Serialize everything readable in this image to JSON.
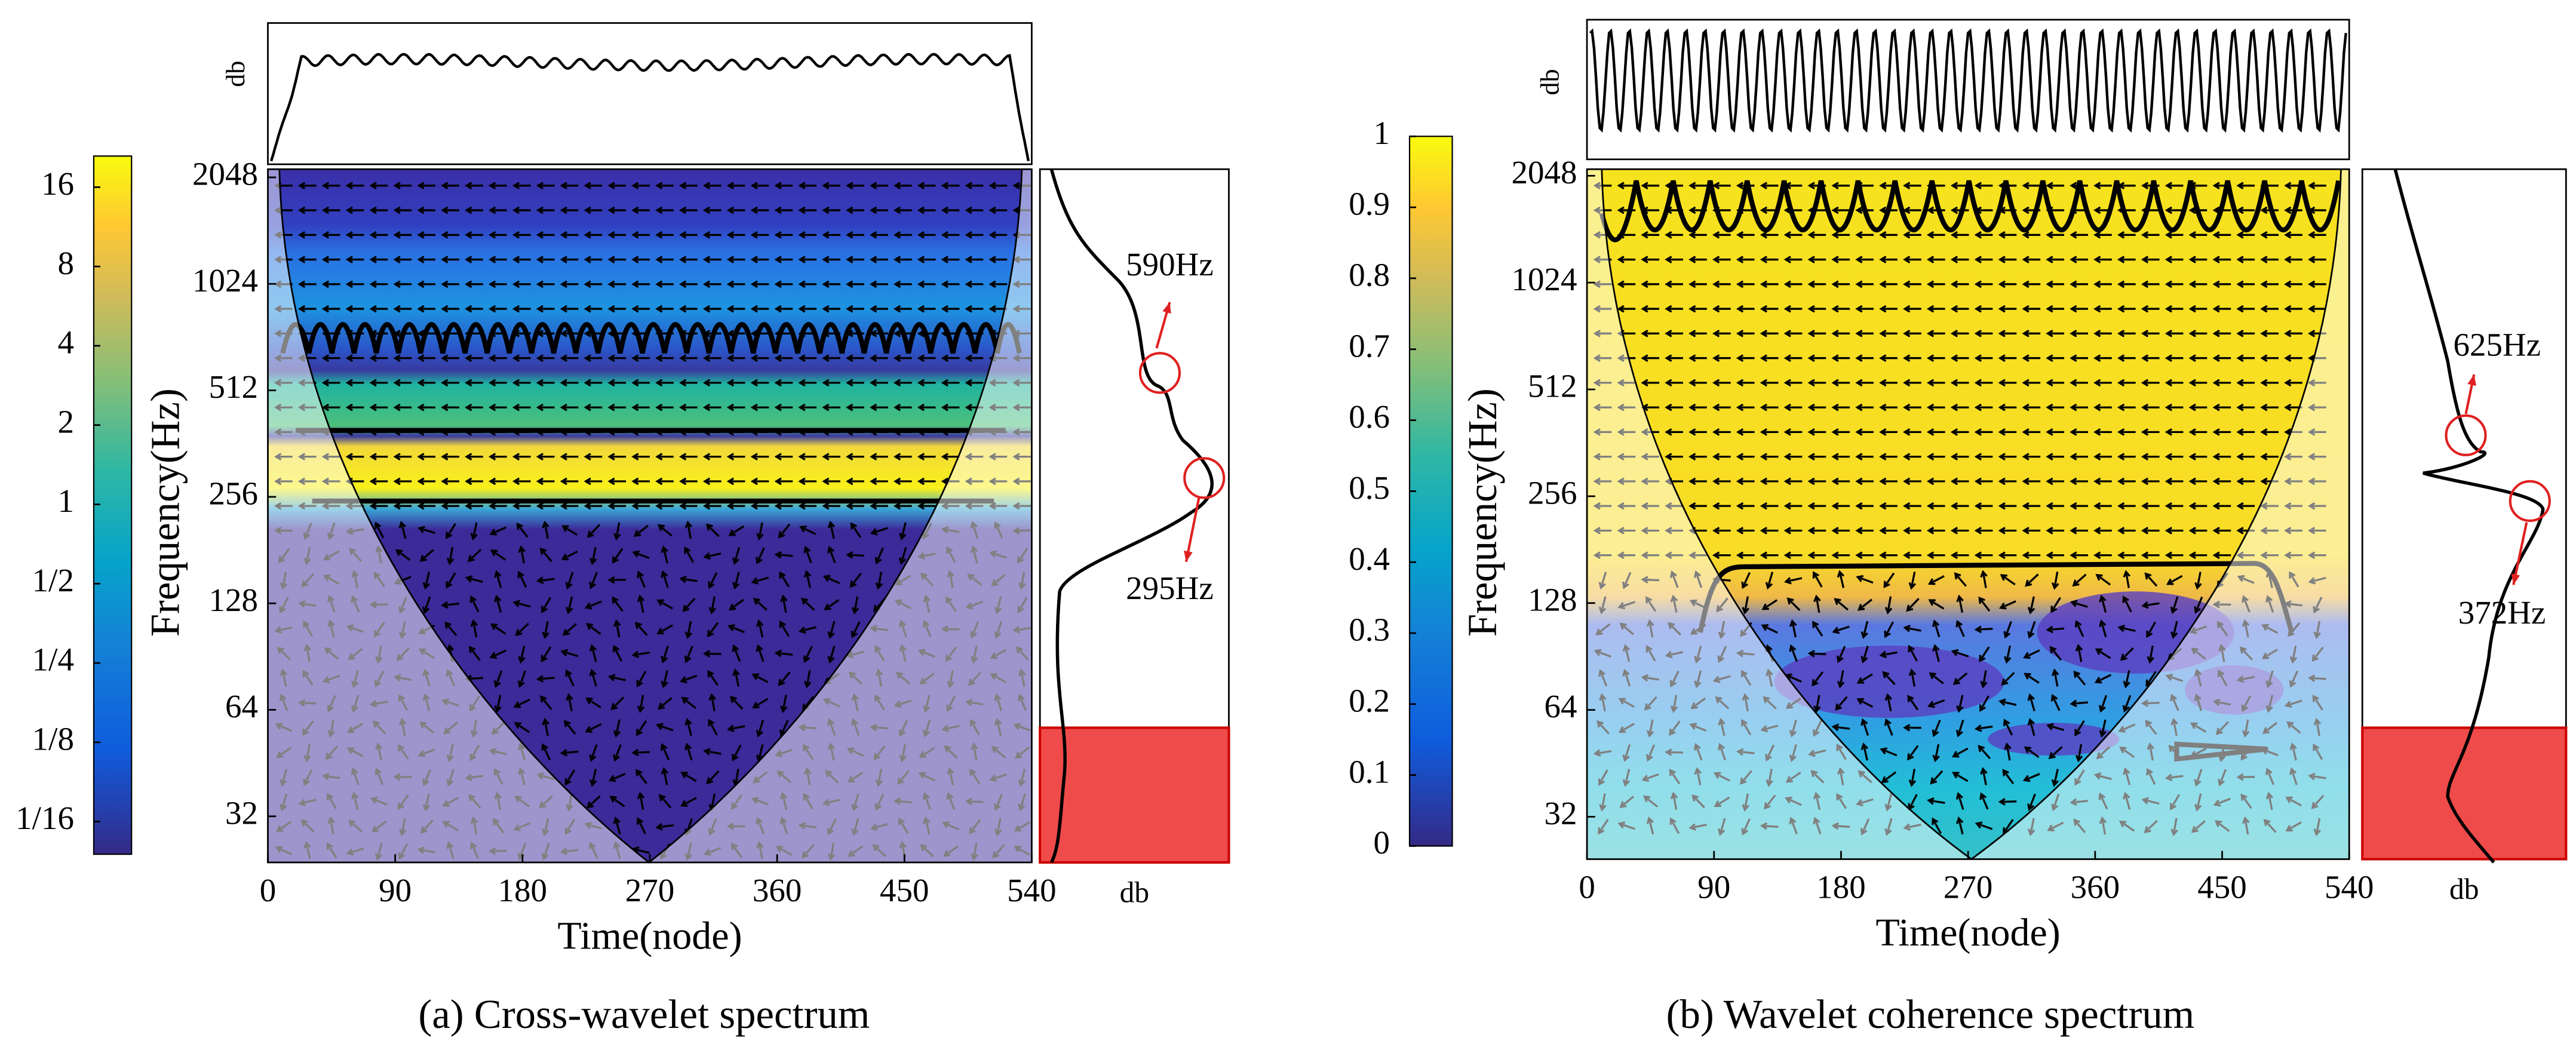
{
  "chart_data": [
    {
      "type": "heatmap",
      "caption": "(a) Cross-wavelet spectrum",
      "xlabel": "Time(node)",
      "ylabel": "Frequency(Hz)",
      "top_ylabel": "db",
      "side_xlabel": "db",
      "xlim": [
        0,
        540
      ],
      "xticks": [
        0,
        90,
        180,
        270,
        360,
        450,
        540
      ],
      "ylim": [
        23.7,
        2160
      ],
      "yscale": "log",
      "yticks": [
        32,
        64,
        128,
        256,
        512,
        1024,
        2048
      ],
      "colorbar": {
        "lim": [
          0.047,
          21
        ],
        "scale": "log",
        "ticks": [
          {
            "value": 0.0625,
            "label": "1/16"
          },
          {
            "value": 0.125,
            "label": "1/8"
          },
          {
            "value": 0.25,
            "label": "1/4"
          },
          {
            "value": 0.5,
            "label": "1/2"
          },
          1,
          2,
          4,
          8,
          16
        ]
      },
      "annotations": [
        "590Hz",
        "295Hz"
      ]
    },
    {
      "type": "heatmap",
      "caption": "(b) Wavelet coherence spectrum",
      "xlabel": "Time(node)",
      "ylabel": "Frequency(Hz)",
      "top_ylabel": "db",
      "side_xlabel": "db",
      "xlim": [
        0,
        540
      ],
      "xticks": [
        0,
        90,
        180,
        270,
        360,
        450,
        540
      ],
      "ylim": [
        24.3,
        2137
      ],
      "yscale": "log",
      "yticks": [
        32,
        64,
        128,
        256,
        512,
        1024,
        2048
      ],
      "colorbar": {
        "lim": [
          0,
          1
        ],
        "scale": "linear",
        "ticks": [
          0,
          0.1,
          0.2,
          0.3,
          0.4,
          0.5,
          0.6,
          0.7,
          0.8,
          0.9,
          1
        ]
      },
      "annotations": [
        "625Hz",
        "372Hz"
      ]
    }
  ]
}
